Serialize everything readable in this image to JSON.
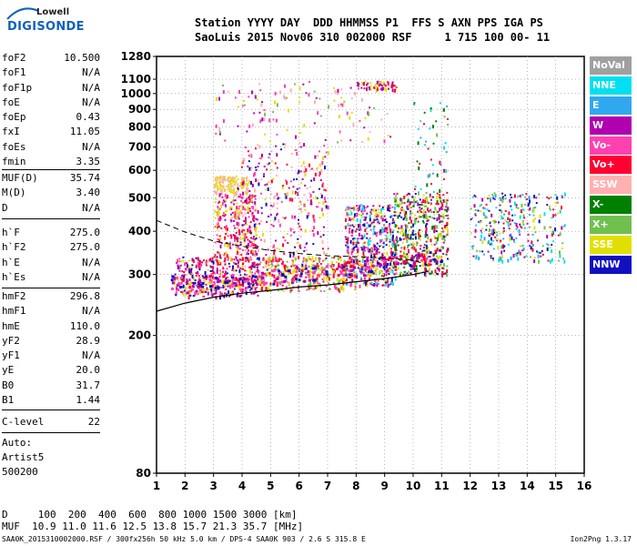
{
  "logo": {
    "line1": "Lowell",
    "line2": "DIGISONDE"
  },
  "header": {
    "line1": "Station YYYY DAY  DDD HHMMSS P1  FFS S AXN PPS IGA PS",
    "line2": "SaoLuis 2015 Nov06 310 002000 RSF     1 715 100 00- 11"
  },
  "params_group1": [
    {
      "name": "foF2",
      "value": "10.500"
    },
    {
      "name": "foF1",
      "value": "N/A"
    },
    {
      "name": "foF1p",
      "value": "N/A"
    },
    {
      "name": "foE",
      "value": "N/A"
    },
    {
      "name": "foEp",
      "value": "0.43"
    },
    {
      "name": "fxI",
      "value": "11.05"
    },
    {
      "name": "foEs",
      "value": "N/A"
    },
    {
      "name": "fmin",
      "value": "3.35"
    }
  ],
  "params_group2": [
    {
      "name": "MUF(D)",
      "value": "35.74"
    },
    {
      "name": "M(D)",
      "value": "3.40"
    },
    {
      "name": "D",
      "value": "N/A"
    }
  ],
  "params_group3": [
    {
      "name": "h`F",
      "value": "275.0"
    },
    {
      "name": "h`F2",
      "value": "275.0"
    },
    {
      "name": "h`E",
      "value": "N/A"
    },
    {
      "name": "h`Es",
      "value": "N/A"
    }
  ],
  "params_group4": [
    {
      "name": "hmF2",
      "value": "296.8"
    },
    {
      "name": "hmF1",
      "value": "N/A"
    },
    {
      "name": "hmE",
      "value": "110.0"
    },
    {
      "name": "yF2",
      "value": "28.9"
    },
    {
      "name": "yF1",
      "value": "N/A"
    },
    {
      "name": "yE",
      "value": "20.0"
    },
    {
      "name": "B0",
      "value": "31.7"
    },
    {
      "name": "B1",
      "value": "1.44"
    }
  ],
  "params_group5": [
    {
      "name": "C-level",
      "value": "22"
    }
  ],
  "auto": {
    "line1": "Auto:",
    "line2": "Artist5",
    "line3": "500200"
  },
  "legend": [
    {
      "label": "NoVal",
      "color": "#a0a0a0"
    },
    {
      "label": "NNE",
      "color": "#00e0f0"
    },
    {
      "label": "E",
      "color": "#30a8f0"
    },
    {
      "label": "W",
      "color": "#b000b0"
    },
    {
      "label": "Vo-",
      "color": "#ff40b0"
    },
    {
      "label": "Vo+",
      "color": "#ff0030"
    },
    {
      "label": "SSW",
      "color": "#ffb0b0"
    },
    {
      "label": "X-",
      "color": "#008000"
    },
    {
      "label": "X+",
      "color": "#70c050"
    },
    {
      "label": "SSE",
      "color": "#e0e000"
    },
    {
      "label": "NNW",
      "color": "#1010c0"
    }
  ],
  "bottom": {
    "d_row": "D     100  200  400  600  800 1000 1500 3000 [km]",
    "muf_row": "MUF  10.9 11.0 11.6 12.5 13.8 15.7 21.3 35.7 [MHz]"
  },
  "footer": {
    "left": "SAA0K_2015310002000.RSF / 300fx256h 50 kHz 5.0 km / DPS-4 SAA0K 903 / 2.6 S 315.8 E",
    "right": "Ion2Png 1.3.17"
  },
  "chart_data": {
    "type": "scatter",
    "title": "",
    "xlabel": "",
    "ylabel": "",
    "x_unit": "MHz",
    "y_unit": "km",
    "xlim": [
      1,
      16
    ],
    "ylim": [
      80,
      1280
    ],
    "yscale": "log",
    "x_ticks": [
      1,
      2,
      3,
      4,
      5,
      6,
      7,
      8,
      9,
      10,
      11,
      12,
      13,
      14,
      15,
      16
    ],
    "y_ticks": [
      80,
      200,
      300,
      400,
      500,
      600,
      700,
      800,
      900,
      1000,
      1100,
      1280
    ],
    "grid": true,
    "legend_position": "right",
    "trace_F_layer": [
      {
        "f": 1.5,
        "h": 285
      },
      {
        "f": 2.0,
        "h": 280
      },
      {
        "f": 2.5,
        "h": 283
      },
      {
        "f": 3.0,
        "h": 288
      },
      {
        "f": 3.5,
        "h": 290
      },
      {
        "f": 4.0,
        "h": 290
      },
      {
        "f": 4.5,
        "h": 293
      },
      {
        "f": 5.0,
        "h": 296
      },
      {
        "f": 5.5,
        "h": 300
      },
      {
        "f": 6.0,
        "h": 303
      },
      {
        "f": 6.5,
        "h": 306
      },
      {
        "f": 7.0,
        "h": 310
      },
      {
        "f": 7.5,
        "h": 312
      },
      {
        "f": 8.0,
        "h": 315
      },
      {
        "f": 8.5,
        "h": 318
      },
      {
        "f": 9.0,
        "h": 325
      },
      {
        "f": 9.5,
        "h": 330
      },
      {
        "f": 10.0,
        "h": 335
      },
      {
        "f": 10.5,
        "h": 340
      },
      {
        "f": 11.0,
        "h": 345
      }
    ],
    "profile_curve": [
      {
        "f": 1.0,
        "h": 235
      },
      {
        "f": 2.0,
        "h": 248
      },
      {
        "f": 3.0,
        "h": 258
      },
      {
        "f": 4.0,
        "h": 265
      },
      {
        "f": 5.0,
        "h": 270
      },
      {
        "f": 6.0,
        "h": 276
      },
      {
        "f": 7.0,
        "h": 280
      },
      {
        "f": 8.0,
        "h": 286
      },
      {
        "f": 9.0,
        "h": 292
      },
      {
        "f": 10.0,
        "h": 300
      },
      {
        "f": 10.5,
        "h": 306
      }
    ],
    "dashed_curve": [
      {
        "f": 1.0,
        "h": 430
      },
      {
        "f": 2.0,
        "h": 398
      },
      {
        "f": 3.0,
        "h": 375
      },
      {
        "f": 4.0,
        "h": 362
      },
      {
        "f": 5.0,
        "h": 352
      },
      {
        "f": 6.0,
        "h": 345
      },
      {
        "f": 7.0,
        "h": 340
      },
      {
        "f": 8.0,
        "h": 338
      },
      {
        "f": 9.0,
        "h": 335
      },
      {
        "f": 10.0,
        "h": 330
      },
      {
        "f": 10.5,
        "h": 320
      }
    ],
    "echo_regions": [
      {
        "f1": 1.6,
        "f2": 4.6,
        "h1": 260,
        "h2": 340,
        "colors": [
          "#ff40b0",
          "#e0e000",
          "#b000b0",
          "#ff0030",
          "#1010c0"
        ],
        "density": 420
      },
      {
        "f1": 3.0,
        "f2": 4.5,
        "h1": 330,
        "h2": 520,
        "colors": [
          "#b000b0",
          "#ff40b0",
          "#ff0030",
          "#e0e000"
        ],
        "density": 260
      },
      {
        "f1": 3.0,
        "f2": 4.2,
        "h1": 520,
        "h2": 580,
        "colors": [
          "#e0e000",
          "#ffb0b0"
        ],
        "density": 120
      },
      {
        "f1": 3.8,
        "f2": 7.0,
        "h1": 300,
        "h2": 720,
        "colors": [
          "#b000b0",
          "#ff40b0",
          "#1010c0",
          "#ff0030",
          "#e0e000",
          "#ffb0b0"
        ],
        "density": 380
      },
      {
        "f1": 4.6,
        "f2": 8.0,
        "h1": 270,
        "h2": 340,
        "colors": [
          "#e0e000",
          "#70c050",
          "#ff0030",
          "#ff40b0"
        ],
        "density": 320
      },
      {
        "f1": 7.6,
        "f2": 9.4,
        "h1": 280,
        "h2": 480,
        "colors": [
          "#b000b0",
          "#1010c0",
          "#ff0030",
          "#ff40b0",
          "#e0e000",
          "#00e0f0"
        ],
        "density": 520
      },
      {
        "f1": 9.3,
        "f2": 11.2,
        "h1": 300,
        "h2": 520,
        "colors": [
          "#e0e000",
          "#70c050",
          "#ff0030",
          "#b000b0",
          "#1010c0",
          "#008000"
        ],
        "density": 480
      },
      {
        "f1": 12.0,
        "f2": 15.3,
        "h1": 330,
        "h2": 520,
        "colors": [
          "#ff0030",
          "#b000b0",
          "#1010c0",
          "#e0e000",
          "#70c050",
          "#00e0f0",
          "#30a8f0"
        ],
        "density": 320
      },
      {
        "f1": 3.0,
        "f2": 9.2,
        "h1": 720,
        "h2": 1090,
        "colors": [
          "#e0e000",
          "#b000b0",
          "#ffb0b0",
          "#ff40b0",
          "#70c050"
        ],
        "density": 120
      },
      {
        "f1": 8.0,
        "f2": 9.4,
        "h1": 1030,
        "h2": 1090,
        "colors": [
          "#e0e000",
          "#b000b0",
          "#ff0030"
        ],
        "density": 60
      },
      {
        "f1": 10.0,
        "f2": 11.2,
        "h1": 520,
        "h2": 950,
        "colors": [
          "#00e0f0",
          "#30a8f0",
          "#ff0030",
          "#70c050",
          "#008000"
        ],
        "density": 50
      }
    ]
  }
}
